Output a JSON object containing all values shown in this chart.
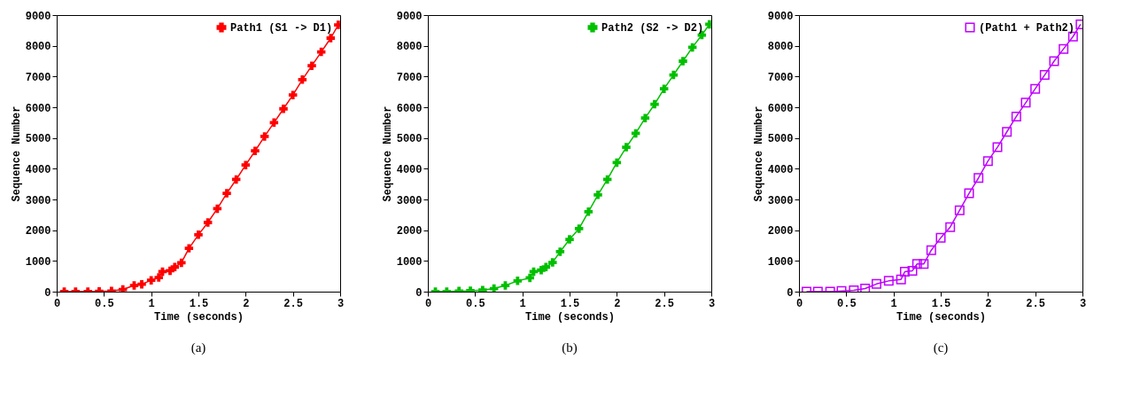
{
  "chart_data": [
    {
      "type": "line",
      "xlabel": "Time (seconds)",
      "ylabel": "Sequence Number",
      "xlim": [
        0,
        3
      ],
      "xticks": [
        0,
        0.5,
        1,
        1.5,
        2,
        2.5,
        3
      ],
      "ylim": [
        0,
        9000
      ],
      "yticks": [
        0,
        1000,
        2000,
        3000,
        4000,
        5000,
        6000,
        7000,
        8000,
        9000
      ],
      "grid": false,
      "legend": "top right",
      "marker": "cross",
      "annotations": [
        "(a)"
      ],
      "series": [
        {
          "name": "Path1 (S1 -> D1)",
          "color": "#ff0000",
          "x": [
            0.08,
            0.2,
            0.33,
            0.45,
            0.58,
            0.7,
            0.82,
            0.9,
            1.0,
            1.08,
            1.12,
            1.2,
            1.25,
            1.32,
            1.4,
            1.5,
            1.6,
            1.7,
            1.8,
            1.9,
            2.0,
            2.1,
            2.2,
            2.3,
            2.4,
            2.5,
            2.6,
            2.7,
            2.8,
            2.9,
            2.98
          ],
          "values": [
            0,
            0,
            0,
            10,
            20,
            70,
            200,
            240,
            370,
            460,
            650,
            680,
            800,
            940,
            1410,
            1850,
            2250,
            2700,
            3200,
            3650,
            4120,
            4580,
            5050,
            5500,
            5950,
            6400,
            6900,
            7350,
            7800,
            8250,
            8680
          ]
        }
      ]
    },
    {
      "type": "line",
      "xlabel": "Time (seconds)",
      "ylabel": "Sequence Number",
      "xlim": [
        0,
        3
      ],
      "xticks": [
        0,
        0.5,
        1,
        1.5,
        2,
        2.5,
        3
      ],
      "ylim": [
        0,
        9000
      ],
      "yticks": [
        0,
        1000,
        2000,
        3000,
        4000,
        5000,
        6000,
        7000,
        8000,
        9000
      ],
      "grid": false,
      "legend": "top right",
      "marker": "cross",
      "annotations": [
        "(b)"
      ],
      "series": [
        {
          "name": "Path2 (S2 -> D2)",
          "color": "#00c000",
          "x": [
            0.08,
            0.2,
            0.33,
            0.45,
            0.58,
            0.7,
            0.82,
            0.95,
            1.08,
            1.12,
            1.2,
            1.25,
            1.32,
            1.4,
            1.5,
            1.6,
            1.7,
            1.8,
            1.9,
            2.0,
            2.1,
            2.2,
            2.3,
            2.4,
            2.5,
            2.6,
            2.7,
            2.8,
            2.9,
            2.98
          ],
          "values": [
            0,
            0,
            20,
            30,
            50,
            100,
            200,
            350,
            450,
            650,
            700,
            800,
            950,
            1300,
            1700,
            2050,
            2600,
            3150,
            3650,
            4200,
            4700,
            5150,
            5650,
            6100,
            6600,
            7050,
            7500,
            7950,
            8350,
            8700
          ]
        }
      ]
    },
    {
      "type": "line",
      "xlabel": "Time (seconds)",
      "ylabel": "Sequence Number",
      "xlim": [
        0,
        3
      ],
      "xticks": [
        0,
        0.5,
        1,
        1.5,
        2,
        2.5,
        3
      ],
      "ylim": [
        0,
        9000
      ],
      "yticks": [
        0,
        1000,
        2000,
        3000,
        4000,
        5000,
        6000,
        7000,
        8000,
        9000
      ],
      "grid": false,
      "legend": "top right",
      "marker": "square",
      "annotations": [
        "(c)"
      ],
      "series": [
        {
          "name": "(Path1 + Path2)",
          "color": "#c000ff",
          "x": [
            0.08,
            0.2,
            0.33,
            0.45,
            0.58,
            0.7,
            0.82,
            0.95,
            1.08,
            1.12,
            1.2,
            1.25,
            1.32,
            1.4,
            1.5,
            1.6,
            1.7,
            1.8,
            1.9,
            2.0,
            2.1,
            2.2,
            2.3,
            2.4,
            2.5,
            2.6,
            2.7,
            2.8,
            2.9,
            2.98
          ],
          "values": [
            0,
            0,
            0,
            20,
            40,
            100,
            250,
            350,
            400,
            650,
            680,
            900,
            900,
            1350,
            1750,
            2100,
            2650,
            3200,
            3700,
            4250,
            4700,
            5200,
            5700,
            6150,
            6600,
            7050,
            7500,
            7900,
            8300,
            8700
          ]
        }
      ]
    }
  ]
}
